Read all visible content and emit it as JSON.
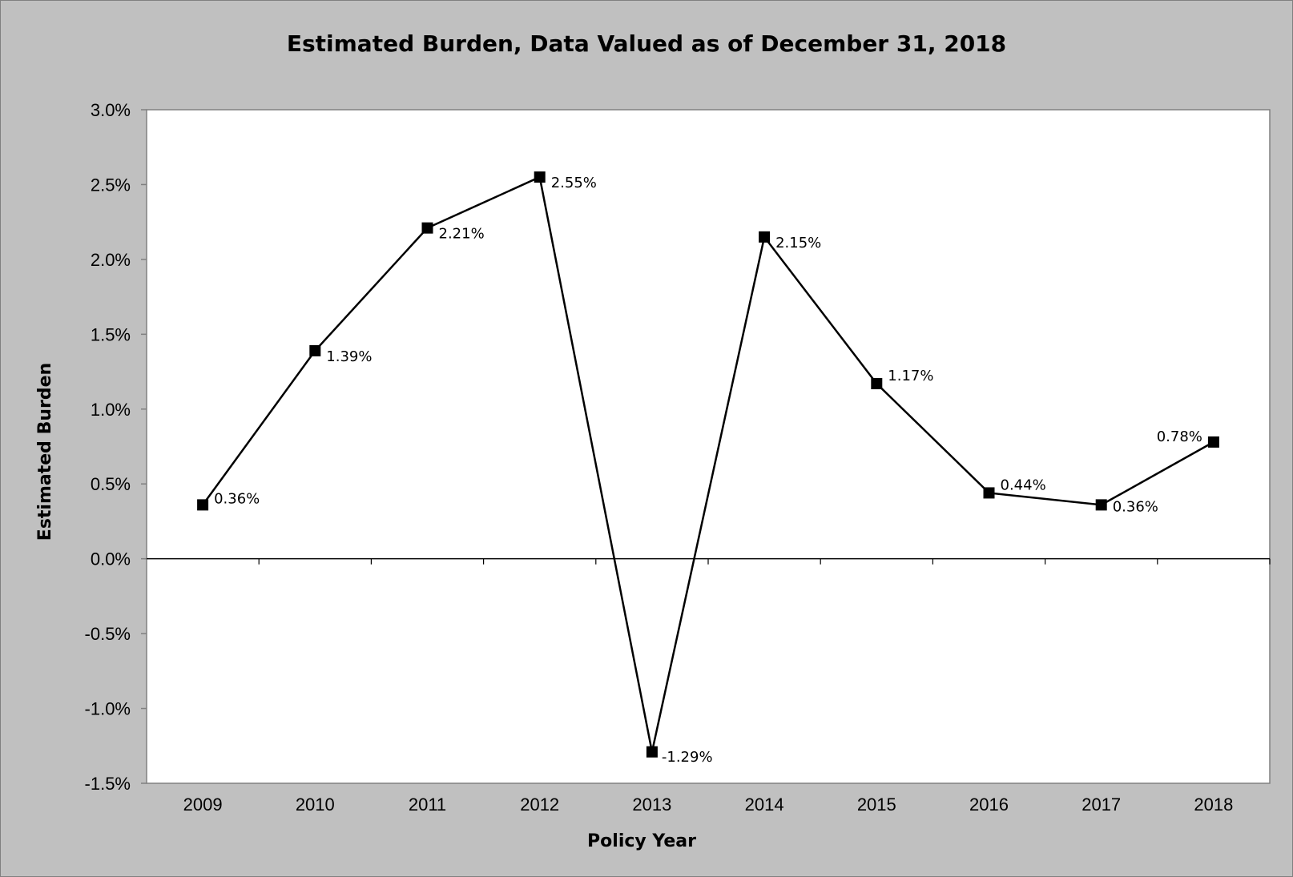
{
  "chart_data": {
    "type": "line",
    "title": "Estimated Burden, Data Valued as of December 31, 2018",
    "xlabel": "Policy Year",
    "ylabel": "Estimated Burden",
    "categories": [
      "2009",
      "2010",
      "2011",
      "2012",
      "2013",
      "2014",
      "2015",
      "2016",
      "2017",
      "2018"
    ],
    "series": [
      {
        "values": [
          0.36,
          1.39,
          2.21,
          2.55,
          -1.29,
          2.15,
          1.17,
          0.44,
          0.36,
          0.78
        ],
        "data_labels": [
          "0.36%",
          "1.39%",
          "2.21%",
          "2.55%",
          "-1.29%",
          "2.15%",
          "1.17%",
          "0.44%",
          "0.36%",
          "0.78%"
        ],
        "marker": "square",
        "color": "#000000"
      }
    ],
    "ylim": [
      -1.5,
      3.0
    ],
    "y_ticks": [
      3.0,
      2.5,
      2.0,
      1.5,
      1.0,
      0.5,
      0.0,
      -0.5,
      -1.0,
      -1.5
    ],
    "y_tick_labels": [
      "3.0%",
      "2.5%",
      "2.0%",
      "1.5%",
      "1.0%",
      "0.5%",
      "0.0%",
      "-0.5%",
      "-1.0%",
      "-1.5%"
    ],
    "grid": false,
    "legend": "none",
    "colors": {
      "page_background": "#c0c0c0",
      "plot_background": "#ffffff",
      "line": "#000000"
    }
  }
}
